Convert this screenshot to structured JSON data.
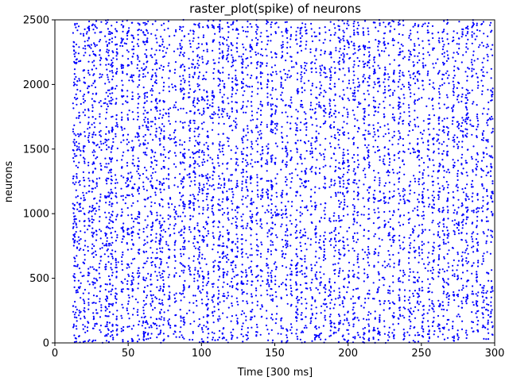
{
  "chart_data": {
    "type": "scatter",
    "title": "raster_plot(spike) of neurons",
    "xlabel": "Time [300 ms]",
    "ylabel": "neurons",
    "xlim": [
      0,
      300
    ],
    "ylim": [
      0,
      2500
    ],
    "xticks": [
      0,
      50,
      100,
      150,
      200,
      250,
      300
    ],
    "yticks": [
      0,
      500,
      1000,
      1500,
      2000,
      2500
    ],
    "grid": false,
    "marker_color": "#0000ff",
    "marker": "dot",
    "series": [
      {
        "description": "spike raster: dense vertical columns of spikes at these times",
        "column_times": [
          13,
          15,
          17,
          20,
          23,
          26,
          28,
          31,
          35,
          37,
          39,
          42,
          46,
          50,
          53,
          57,
          61,
          63,
          66,
          69,
          72,
          74,
          78,
          82,
          86,
          88,
          92,
          95,
          98,
          101,
          104,
          108,
          112,
          115,
          118,
          121,
          124,
          128,
          131,
          134,
          138,
          141,
          145,
          148,
          151,
          155,
          158,
          161,
          165,
          168,
          171,
          175,
          178,
          181,
          184,
          188,
          191,
          194,
          197,
          200,
          204,
          207,
          211,
          214,
          218,
          221,
          225,
          228,
          231,
          235,
          238,
          242,
          245,
          248,
          251,
          255,
          258,
          262,
          265,
          268,
          272,
          275,
          278,
          281,
          285,
          288,
          292,
          295,
          298
        ]
      }
    ]
  }
}
